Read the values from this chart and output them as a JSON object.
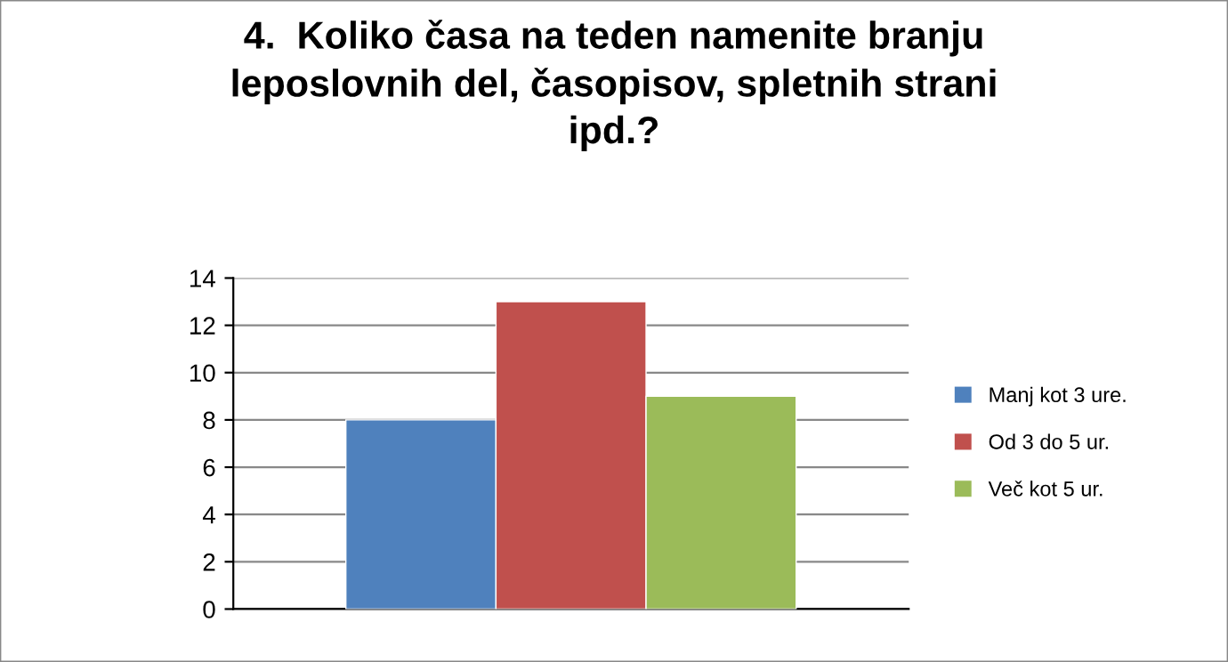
{
  "chart_data": {
    "type": "bar",
    "title": "4.  Koliko časa na teden namenite branju\nleposlovnih del, časopisov, spletnih strani\nipd.?",
    "categories": [
      null
    ],
    "series": [
      {
        "name": "Manj kot 3 ure.",
        "color": "#4f81bd",
        "values": [
          8
        ]
      },
      {
        "name": "Od 3 do 5 ur.",
        "color": "#c0504d",
        "values": [
          13
        ]
      },
      {
        "name": "Več kot 5 ur.",
        "color": "#9bbb59",
        "values": [
          9
        ]
      }
    ],
    "ylim": [
      0,
      14
    ],
    "yticks": [
      0,
      2,
      4,
      6,
      8,
      10,
      12,
      14
    ],
    "grid": "y",
    "legend": "right"
  }
}
